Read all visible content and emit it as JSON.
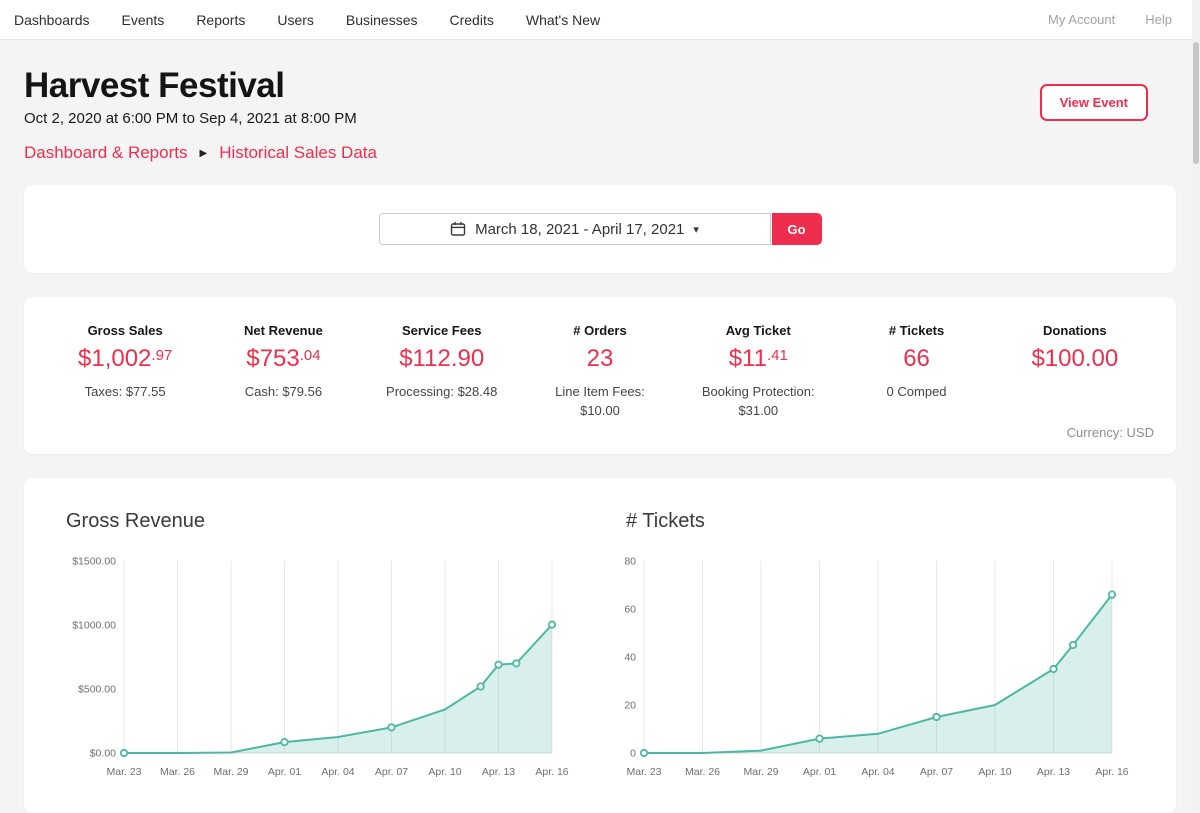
{
  "nav": {
    "items": [
      "Dashboards",
      "Events",
      "Reports",
      "Users",
      "Businesses",
      "Credits",
      "What's New"
    ],
    "right_items": [
      "My Account",
      "Help"
    ]
  },
  "header": {
    "title": "Harvest Festival",
    "date_range": "Oct 2, 2020 at 6:00 PM to Sep 4, 2021 at 8:00 PM",
    "breadcrumb": {
      "parent": "Dashboard & Reports",
      "separator": "▶",
      "current": "Historical Sales Data"
    },
    "view_event_label": "View Event"
  },
  "date_filter": {
    "value": "March 18, 2021 - April 17, 2021",
    "caret": "▾",
    "go_label": "Go"
  },
  "stats": {
    "items": [
      {
        "label": "Gross Sales",
        "value": "$1,002",
        "cents": ".97",
        "sub": "Taxes: $77.55"
      },
      {
        "label": "Net Revenue",
        "value": "$753",
        "cents": ".04",
        "sub": "Cash: $79.56"
      },
      {
        "label": "Service Fees",
        "value": "$112.90",
        "cents": "",
        "sub": "Processing: $28.48"
      },
      {
        "label": "# Orders",
        "value": "23",
        "cents": "",
        "sub": "Line Item Fees: $10.00"
      },
      {
        "label": "Avg Ticket",
        "value": "$11",
        "cents": ".41",
        "sub": "Booking Protection: $31.00"
      },
      {
        "label": "# Tickets",
        "value": "66",
        "cents": "",
        "sub": "0 Comped"
      },
      {
        "label": "Donations",
        "value": "$100.00",
        "cents": "",
        "sub": ""
      }
    ],
    "currency_note": "Currency: USD"
  },
  "colors": {
    "accent": "#ee2e4e",
    "chart_line": "#4cb8a4",
    "chart_fill": "rgba(76,184,164,0.22)"
  },
  "chart_data": [
    {
      "type": "area",
      "title": "Gross Revenue",
      "x_tick_labels": [
        "Mar. 23",
        "Mar. 26",
        "Mar. 29",
        "Apr. 01",
        "Apr. 04",
        "Apr. 07",
        "Apr. 10",
        "Apr. 13",
        "Apr. 16"
      ],
      "y_tick_labels": [
        "$0.00",
        "$500.00",
        "$1000.00",
        "$1500.00"
      ],
      "ylim": [
        0,
        1500
      ],
      "x_range": [
        0,
        24
      ],
      "line_color": "#4cb8a4",
      "fill_color": "rgba(76,184,164,0.22)",
      "points": [
        [
          0,
          0,
          1
        ],
        [
          3,
          0,
          0
        ],
        [
          6,
          4,
          0
        ],
        [
          9,
          85,
          1
        ],
        [
          12,
          125,
          0
        ],
        [
          15,
          200,
          1
        ],
        [
          18,
          340,
          0
        ],
        [
          20,
          520,
          1
        ],
        [
          21,
          690,
          1
        ],
        [
          22,
          700,
          1
        ],
        [
          24,
          1002.97,
          1
        ]
      ]
    },
    {
      "type": "area",
      "title": "# Tickets",
      "x_tick_labels": [
        "Mar. 23",
        "Mar. 26",
        "Mar. 29",
        "Apr. 01",
        "Apr. 04",
        "Apr. 07",
        "Apr. 10",
        "Apr. 13",
        "Apr. 16"
      ],
      "y_tick_labels": [
        "0",
        "20",
        "40",
        "60",
        "80"
      ],
      "ylim": [
        0,
        80
      ],
      "x_range": [
        0,
        24
      ],
      "line_color": "#4cb8a4",
      "fill_color": "rgba(76,184,164,0.22)",
      "points": [
        [
          0,
          0,
          1
        ],
        [
          3,
          0,
          0
        ],
        [
          6,
          1,
          0
        ],
        [
          9,
          6,
          1
        ],
        [
          12,
          8,
          0
        ],
        [
          15,
          15,
          1
        ],
        [
          18,
          20,
          0
        ],
        [
          21,
          35,
          1
        ],
        [
          22,
          45,
          1
        ],
        [
          24,
          66,
          1
        ]
      ]
    }
  ]
}
